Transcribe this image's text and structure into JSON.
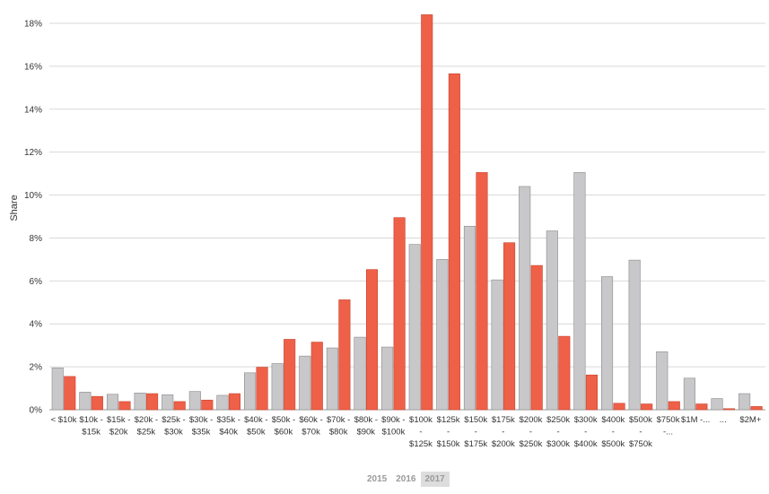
{
  "chart_data": {
    "type": "bar",
    "ylabel": "Share",
    "xlabel": "",
    "ylim": [
      0,
      18
    ],
    "yticks": [
      "0%",
      "2%",
      "4%",
      "6%",
      "8%",
      "10%",
      "12%",
      "14%",
      "16%",
      "18%"
    ],
    "grid": true,
    "categories": [
      [
        "< $10k"
      ],
      [
        "$10k -",
        "$15k"
      ],
      [
        "$15k -",
        "$20k"
      ],
      [
        "$20k -",
        "$25k"
      ],
      [
        "$25k -",
        "$30k"
      ],
      [
        "$30k -",
        "$35k"
      ],
      [
        "$35k -",
        "$40k"
      ],
      [
        "$40k -",
        "$50k"
      ],
      [
        "$50k -",
        "$60k"
      ],
      [
        "$60k -",
        "$70k"
      ],
      [
        "$70k -",
        "$80k"
      ],
      [
        "$80k -",
        "$90k"
      ],
      [
        "$90k -",
        "$100k"
      ],
      [
        "$100k",
        "-",
        "$125k"
      ],
      [
        "$125k",
        "-",
        "$150k"
      ],
      [
        "$150k",
        "-",
        "$175k"
      ],
      [
        "$175k",
        "-",
        "$200k"
      ],
      [
        "$200k",
        "-",
        "$250k"
      ],
      [
        "$250k",
        "-",
        "$300k"
      ],
      [
        "$300k",
        "-",
        "$400k"
      ],
      [
        "$400k",
        "-",
        "$500k"
      ],
      [
        "$500k",
        "-",
        "$750k"
      ],
      [
        "$750k",
        "-..."
      ],
      [
        "$1M -..."
      ],
      [
        "..."
      ],
      [
        "$2M+"
      ]
    ],
    "series": [
      {
        "name": "2016",
        "color": "#c8c8ca",
        "values": [
          1.95,
          0.82,
          0.72,
          0.78,
          0.7,
          0.85,
          0.67,
          1.72,
          2.15,
          2.5,
          2.88,
          3.38,
          2.92,
          7.7,
          7.0,
          8.55,
          6.05,
          10.4,
          8.33,
          11.05,
          6.2,
          6.97,
          2.7,
          1.47,
          0.52,
          0.75
        ]
      },
      {
        "name": "2017",
        "color": "#ef6048",
        "values": [
          1.55,
          0.62,
          0.38,
          0.75,
          0.38,
          0.45,
          0.75,
          1.98,
          3.28,
          3.15,
          5.12,
          6.53,
          8.95,
          18.4,
          15.65,
          11.05,
          7.78,
          6.72,
          3.42,
          1.62,
          0.3,
          0.27,
          0.38,
          0.27,
          0.05,
          0.15
        ]
      }
    ]
  },
  "legend": {
    "years": [
      {
        "label": "2015",
        "active": false
      },
      {
        "label": "2016",
        "active": false
      },
      {
        "label": "2017",
        "active": true
      }
    ]
  }
}
